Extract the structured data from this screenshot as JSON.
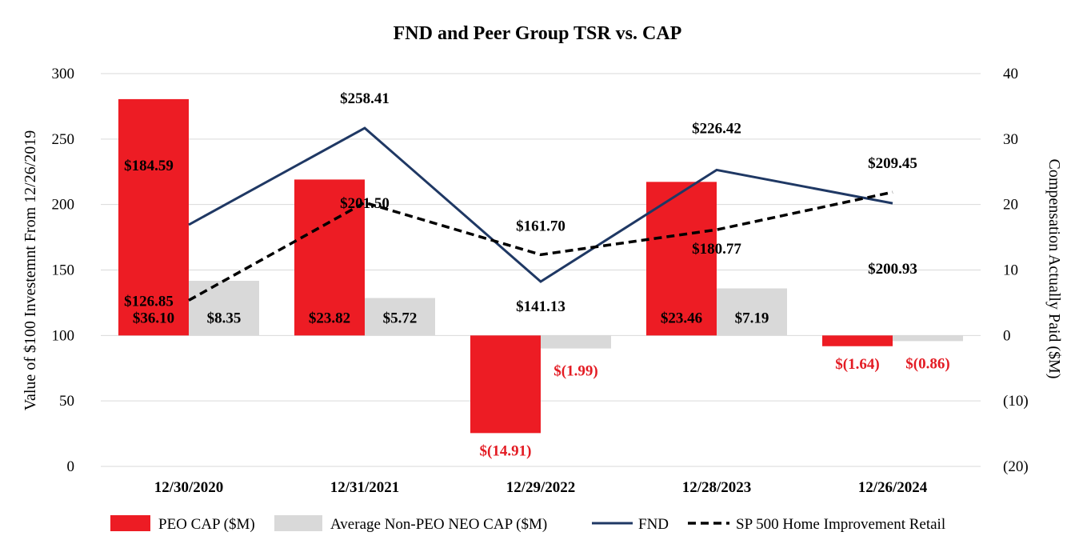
{
  "colors": {
    "peo": "#ed1c24",
    "neo": "#d9d9d9",
    "fnd": "#1f3864",
    "sp500": "#000000",
    "negative_label": "#e31b23",
    "grid": "#d9d9d9"
  },
  "chart_data": {
    "type": "bar",
    "title": "FND and Peer Group TSR vs. CAP",
    "ylabel": "Value of $100 Investemnt From 12/26/2019",
    "y2label": "Compensation Actually Paid ($M)",
    "ylim": [
      0,
      300
    ],
    "y2lim": [
      -20,
      40
    ],
    "yticks": [
      "0",
      "50",
      "100",
      "150",
      "200",
      "250",
      "300"
    ],
    "y2ticks": [
      "(20)",
      "(10)",
      "0",
      "10",
      "20",
      "30",
      "40"
    ],
    "categories": [
      "12/30/2020",
      "12/31/2021",
      "12/29/2022",
      "12/28/2023",
      "12/26/2024"
    ],
    "bar_series": [
      {
        "name": "PEO CAP ($M)",
        "axis": "right",
        "values": [
          36.1,
          23.82,
          -14.91,
          23.46,
          -1.64
        ],
        "labels": [
          "$36.10",
          "$23.82",
          "$(14.91)",
          "$23.46",
          "$(1.64)"
        ]
      },
      {
        "name": "Average Non-PEO NEO CAP ($M)",
        "axis": "right",
        "values": [
          8.35,
          5.72,
          -1.99,
          7.19,
          -0.86
        ],
        "labels": [
          "$8.35",
          "$5.72",
          "$(1.99)",
          "$7.19",
          "$(0.86)"
        ]
      }
    ],
    "line_series": [
      {
        "name": "FND",
        "axis": "left",
        "style": "solid",
        "values": [
          184.59,
          258.41,
          141.13,
          226.42,
          200.93
        ],
        "labels": [
          "$184.59",
          "$258.41",
          "$141.13",
          "$226.42",
          "$200.93"
        ]
      },
      {
        "name": "SP 500 Home Improvement Retail",
        "axis": "left",
        "style": "dashed",
        "values": [
          126.85,
          201.5,
          161.7,
          180.77,
          209.45
        ],
        "labels": [
          "$126.85",
          "$201.50",
          "$161.70",
          "$180.77",
          "$209.45"
        ]
      }
    ],
    "legend": [
      "PEO CAP ($M)",
      "Average Non-PEO NEO CAP ($M)",
      "FND",
      "SP 500 Home Improvement Retail"
    ],
    "legend_position": "bottom",
    "grid": true
  }
}
